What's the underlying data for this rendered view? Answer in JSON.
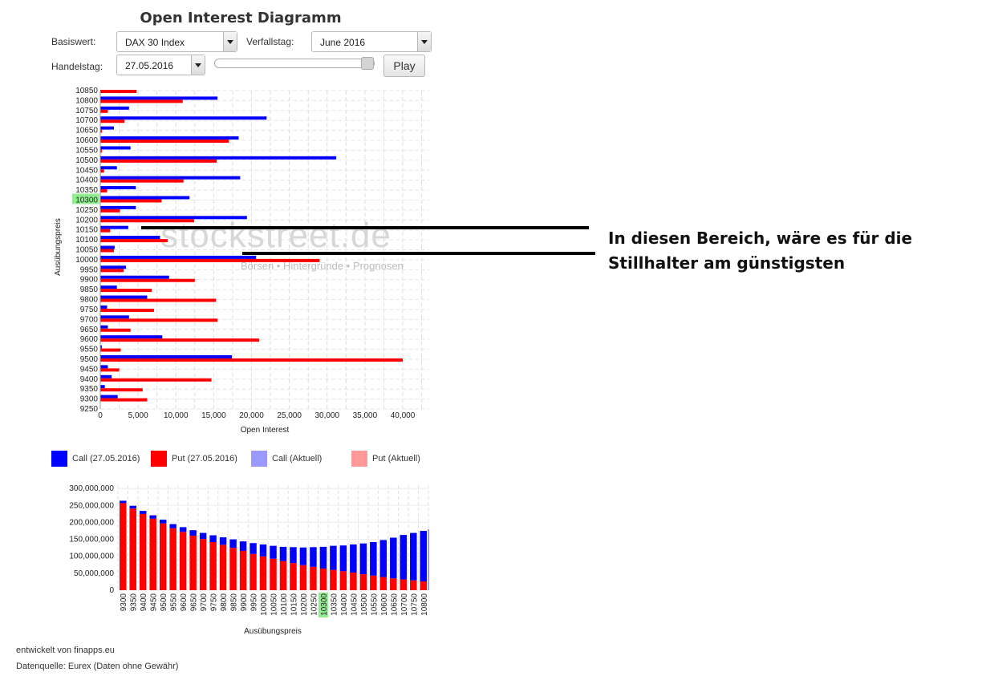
{
  "header": {
    "title": "Open Interest Diagramm"
  },
  "controls": {
    "basiswert_label": "Basiswert:",
    "basiswert_value": "DAX 30 Index",
    "verfallstag_label": "Verfallstag:",
    "verfallstag_value": "June 2016",
    "handelstag_label": "Handelstag:",
    "handelstag_value": "27.05.2016",
    "slider_position": 1.0,
    "play_label": "Play"
  },
  "colors": {
    "call": "#0000ff",
    "put": "#ff0000",
    "call_aktuell": "#9999ff",
    "put_aktuell": "#ff9999",
    "highlight": "#90ee90",
    "annotation_line": "#000000"
  },
  "watermark": {
    "brand": "stockstreet.de",
    "tagline": "Börsen • Hintergründe • Prognosen"
  },
  "legend": {
    "items": [
      {
        "label": "Call (27.05.2016)",
        "color": "#0000ff"
      },
      {
        "label": "Put (27.05.2016)",
        "color": "#ff0000"
      },
      {
        "label": "Call (Aktuell)",
        "color": "#9999ff"
      },
      {
        "label": "Put (Aktuell)",
        "color": "#ff9999"
      }
    ]
  },
  "chart_data": [
    {
      "type": "bar",
      "orientation": "horizontal",
      "xlabel": "Open Interest",
      "ylabel": "Ausübungspreis",
      "xlim": [
        0,
        43500
      ],
      "xticks": [
        0,
        5000,
        10000,
        15000,
        20000,
        25000,
        30000,
        35000,
        40000
      ],
      "xtick_labels": [
        "0",
        "5,000",
        "10,000",
        "15,000",
        "20,000",
        "25,000",
        "30,000",
        "35,000",
        "40,000"
      ],
      "highlight_category": "10300",
      "categories": [
        "10850",
        "10800",
        "10750",
        "10700",
        "10650",
        "10600",
        "10550",
        "10500",
        "10450",
        "10400",
        "10350",
        "10300",
        "10250",
        "10200",
        "10150",
        "10100",
        "10050",
        "10000",
        "9950",
        "9900",
        "9850",
        "9800",
        "9750",
        "9700",
        "9650",
        "9600",
        "9550",
        "9500",
        "9450",
        "9400",
        "9350",
        "9300",
        "9250"
      ],
      "series": [
        {
          "name": "Call (27.05.2016)",
          "values": [
            null,
            15500,
            3800,
            22000,
            1800,
            18300,
            4000,
            31200,
            2200,
            18500,
            4700,
            11800,
            4700,
            19400,
            3700,
            7900,
            1900,
            20600,
            3400,
            9100,
            2200,
            6200,
            900,
            3800,
            1000,
            8200,
            200,
            17400,
            1000,
            1500,
            600,
            2300,
            null
          ]
        },
        {
          "name": "Put (27.05.2016)",
          "values": [
            4800,
            10900,
            1000,
            3200,
            200,
            17000,
            200,
            15400,
            500,
            11000,
            900,
            8100,
            2600,
            12400,
            1300,
            8900,
            1800,
            29000,
            3100,
            12500,
            6800,
            15300,
            7100,
            15500,
            4000,
            21000,
            2700,
            40000,
            2500,
            14700,
            5600,
            6200,
            null
          ]
        }
      ]
    },
    {
      "type": "bar",
      "stacked": true,
      "xlabel": "Ausübungspreis",
      "ylabel": "",
      "ylim": [
        0,
        310000000
      ],
      "yticks": [
        0,
        50000000,
        100000000,
        150000000,
        200000000,
        250000000,
        300000000
      ],
      "ytick_labels": [
        "0",
        "50,000,000",
        "100,000,000",
        "150,000,000",
        "200,000,000",
        "250,000,000",
        "300,000,000"
      ],
      "highlight_category": "10300",
      "categories": [
        "9300",
        "9350",
        "9400",
        "9450",
        "9500",
        "9550",
        "9600",
        "9650",
        "9700",
        "9750",
        "9800",
        "9850",
        "9900",
        "9950",
        "10000",
        "10050",
        "10100",
        "10150",
        "10200",
        "10250",
        "10300",
        "10350",
        "10400",
        "10450",
        "10500",
        "10550",
        "10600",
        "10650",
        "10700",
        "10750",
        "10800"
      ],
      "series": [
        {
          "name": "Put",
          "values": [
            257000000,
            241000000,
            225000000,
            211000000,
            197000000,
            183000000,
            172000000,
            161000000,
            151000000,
            142000000,
            134000000,
            125000000,
            116000000,
            107000000,
            100000000,
            93000000,
            86000000,
            80000000,
            74000000,
            69000000,
            64000000,
            60000000,
            56000000,
            52000000,
            47000000,
            43000000,
            39000000,
            35000000,
            32000000,
            29000000,
            26000000
          ]
        },
        {
          "name": "Call",
          "values": [
            7000000,
            8000000,
            9000000,
            10000000,
            11000000,
            12000000,
            14000000,
            16000000,
            18000000,
            20000000,
            22000000,
            25000000,
            28000000,
            32000000,
            35000000,
            38000000,
            42000000,
            47000000,
            52000000,
            58000000,
            64000000,
            71000000,
            76000000,
            83000000,
            91000000,
            99000000,
            109000000,
            120000000,
            131000000,
            140000000,
            149000000
          ]
        }
      ]
    }
  ],
  "annotation": {
    "line1": "In diesen Bereich, wäre es für die",
    "line2": "Stillhalter am günstigsten"
  },
  "footer": {
    "credit": "entwickelt von finapps.eu",
    "source": "Datenquelle: Eurex (Daten ohne Gewähr)"
  }
}
